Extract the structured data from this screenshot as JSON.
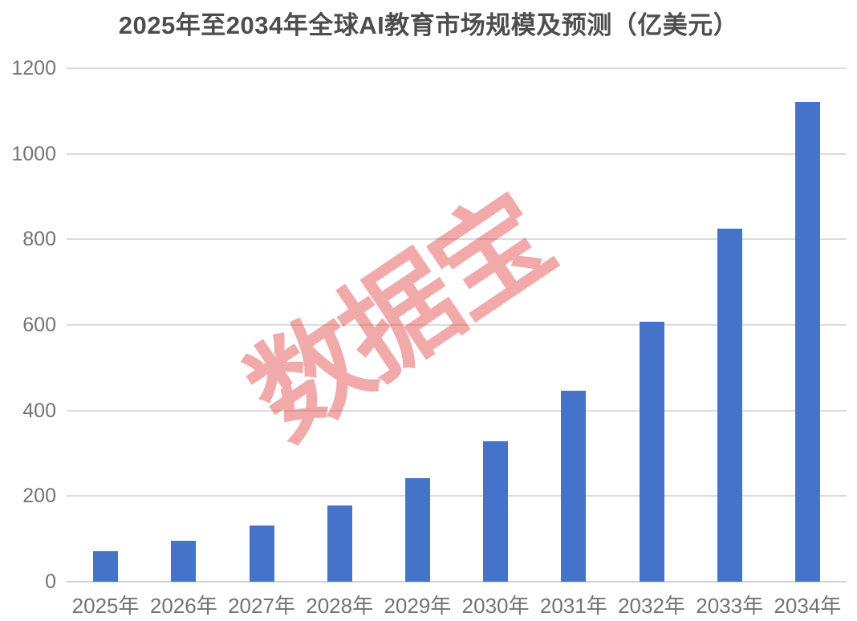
{
  "chart_data": {
    "type": "bar",
    "title": "2025年至2034年全球AI教育市场规模及预测（亿美元）",
    "categories": [
      "2025年",
      "2026年",
      "2027年",
      "2028年",
      "2029年",
      "2030年",
      "2031年",
      "2032年",
      "2033年",
      "2034年"
    ],
    "values": [
      70.5,
      95.9,
      130.4,
      177.3,
      241.2,
      328.0,
      446.1,
      606.7,
      825.1,
      1122.1
    ],
    "xlabel": "",
    "ylabel": "",
    "ylim": [
      0,
      1200
    ],
    "yticks": [
      0,
      200,
      400,
      600,
      800,
      1000,
      1200
    ],
    "grid": true,
    "legend": "none",
    "bar_color": "#4573CA",
    "gridline_color": "#dcdcdc",
    "title_color": "#4d4d4d",
    "tick_label_color": "#737373",
    "watermark": {
      "text": "数据宝",
      "color": "rgba(225,50,50,0.42)"
    }
  }
}
